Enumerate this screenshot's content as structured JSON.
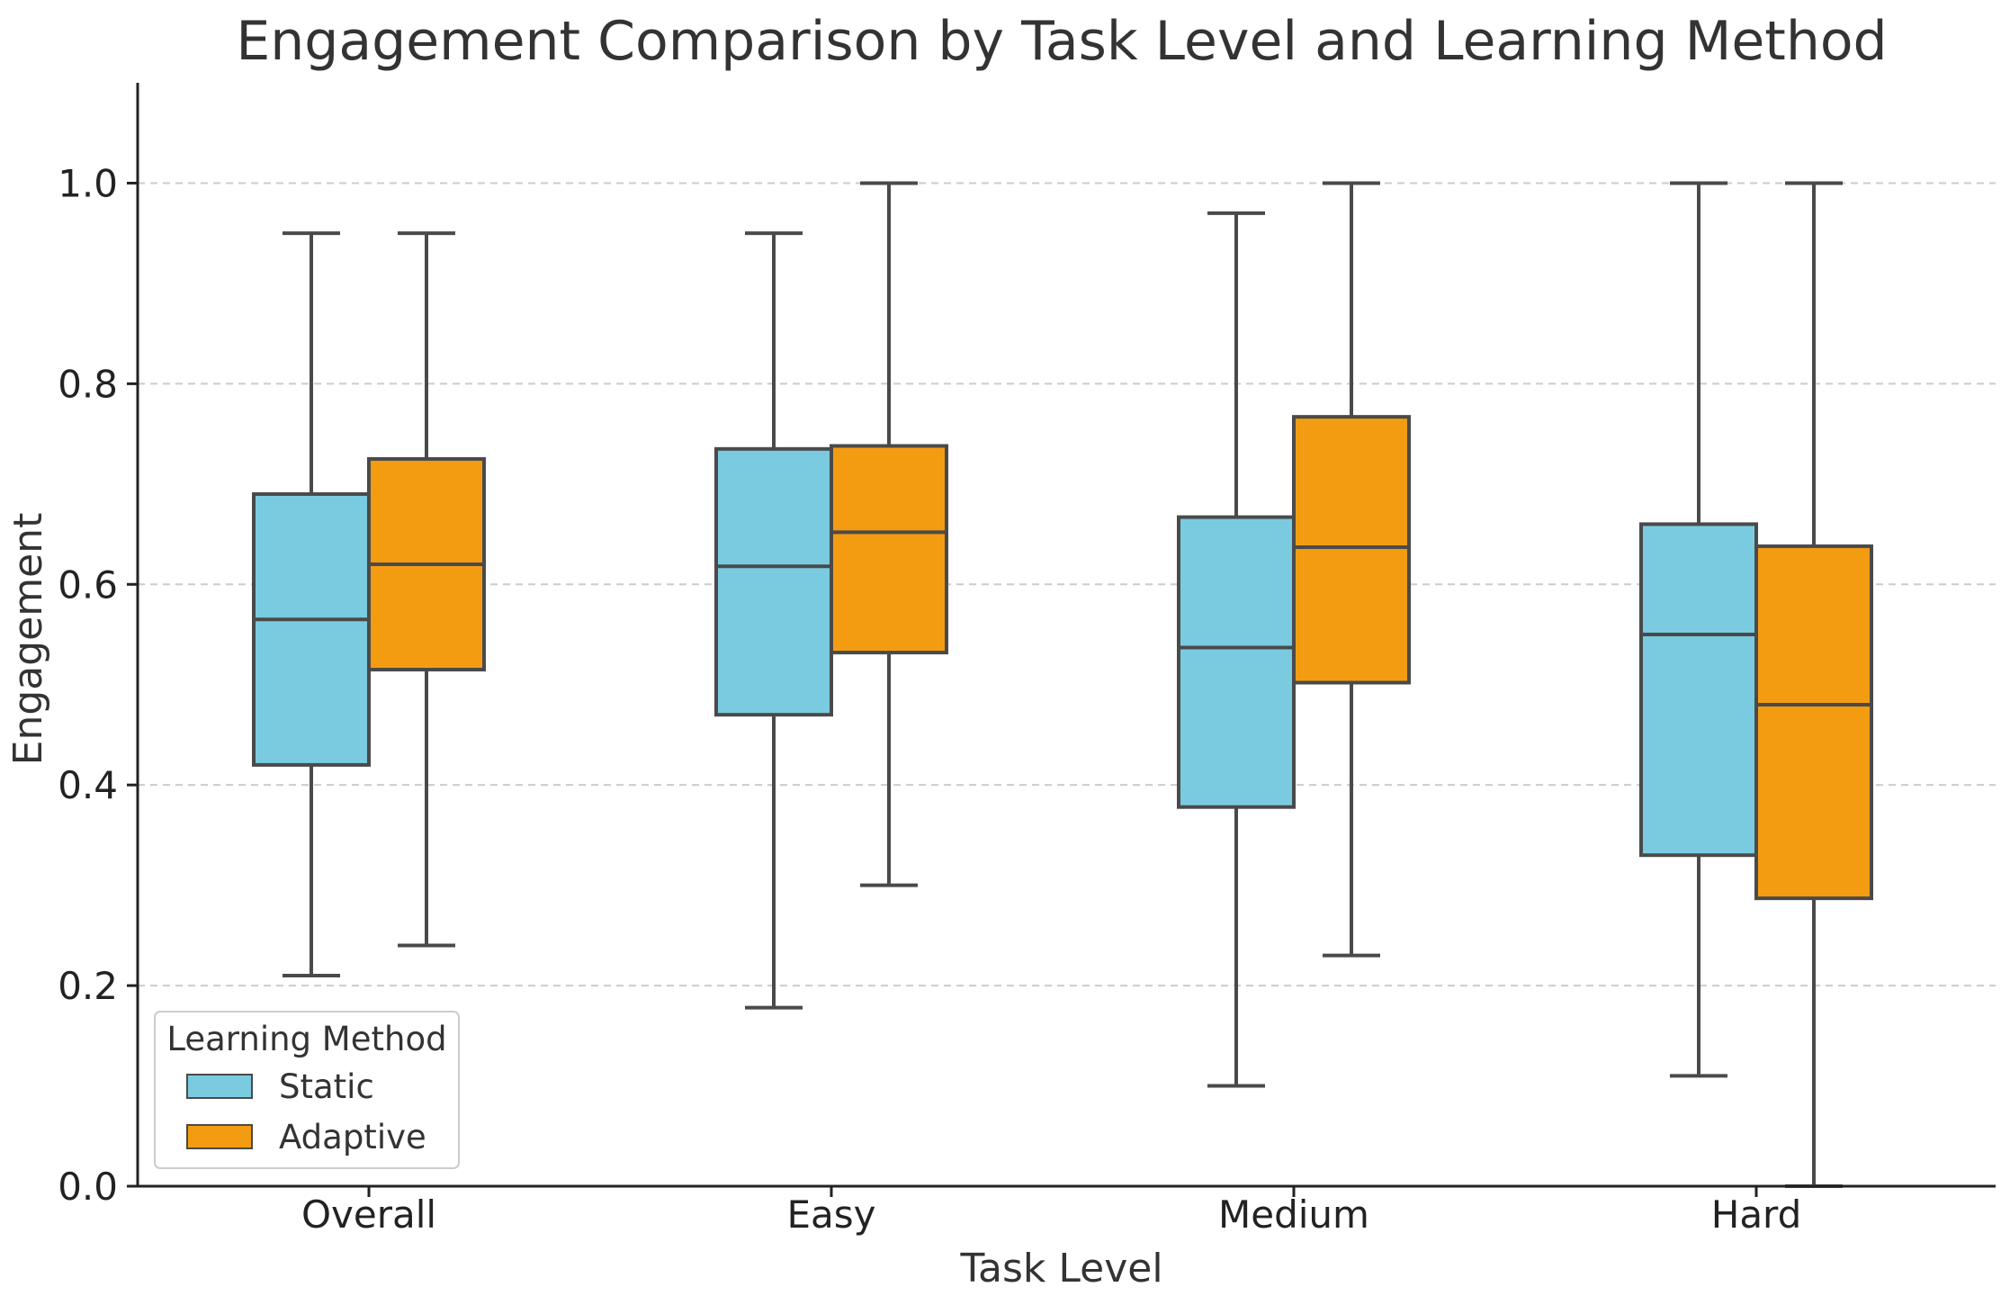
{
  "chart_data": {
    "type": "box",
    "title": "Engagement Comparison by Task Level and Learning Method",
    "xlabel": "Task Level",
    "ylabel": "Engagement",
    "ylim": [
      0.0,
      1.1
    ],
    "yticks": [
      0.0,
      0.2,
      0.4,
      0.6,
      0.8,
      1.0
    ],
    "ytick_labels": [
      "0.0",
      "0.2",
      "0.4",
      "0.6",
      "0.8",
      "1.0"
    ],
    "grid": "horizontal dashed",
    "categories": [
      "Overall",
      "Easy",
      "Medium",
      "Hard"
    ],
    "legend": {
      "title": "Learning Method",
      "position": "lower-left"
    },
    "series": [
      {
        "name": "Static",
        "color": "#7ACBE0",
        "boxes": [
          {
            "min": 0.21,
            "q1": 0.42,
            "median": 0.565,
            "q3": 0.69,
            "max": 0.95
          },
          {
            "min": 0.178,
            "q1": 0.47,
            "median": 0.618,
            "q3": 0.735,
            "max": 0.95
          },
          {
            "min": 0.1,
            "q1": 0.378,
            "median": 0.537,
            "q3": 0.667,
            "max": 0.97
          },
          {
            "min": 0.11,
            "q1": 0.33,
            "median": 0.55,
            "q3": 0.66,
            "max": 1.0
          }
        ]
      },
      {
        "name": "Adaptive",
        "color": "#F39C12",
        "boxes": [
          {
            "min": 0.24,
            "q1": 0.515,
            "median": 0.62,
            "q3": 0.725,
            "max": 0.95
          },
          {
            "min": 0.3,
            "q1": 0.532,
            "median": 0.652,
            "q3": 0.738,
            "max": 1.0
          },
          {
            "min": 0.23,
            "q1": 0.502,
            "median": 0.637,
            "q3": 0.767,
            "max": 1.0
          },
          {
            "min": 0.0,
            "q1": 0.287,
            "median": 0.48,
            "q3": 0.638,
            "max": 1.0
          }
        ]
      }
    ],
    "colors": {
      "static": "#7ACBE0",
      "adaptive": "#F39C12",
      "outline": "#4A4A4A",
      "grid": "#CCCCCC",
      "axis": "#222222"
    }
  }
}
